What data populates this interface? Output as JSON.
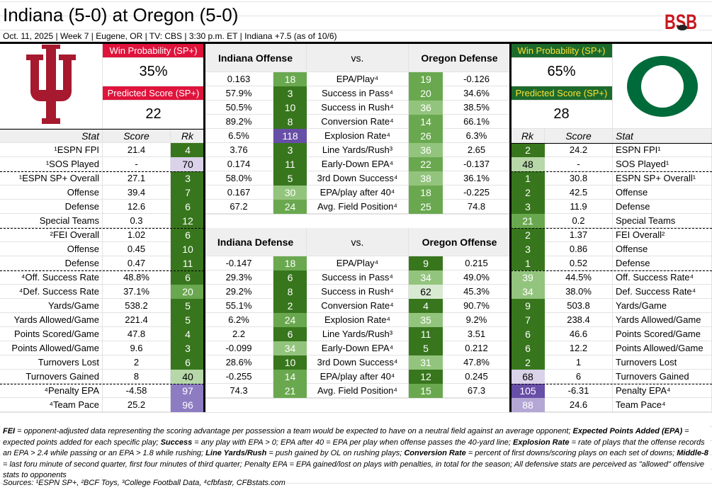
{
  "header": {
    "title": "Indiana (5-0) at Oregon (5-0)",
    "subtitle": "Oct. 11, 2025 | Week 7 | Eugene, OR | TV: CBS | 3:30 p.m. ET | Indiana +7.5 (as of 10/6)",
    "brand_logo": "BSB"
  },
  "indiana": {
    "logo": "IU",
    "win_prob_label": "Win Probability (SP+)",
    "win_prob": "35%",
    "pred_label": "Predicted Score (SP+)",
    "pred_score": "22",
    "color": "#a6192e"
  },
  "oregon": {
    "logo": "O",
    "win_prob_label": "Win Probability (SP+)",
    "win_prob": "65%",
    "pred_label": "Predicted Score (SP+)",
    "pred_score": "28",
    "color": "#006b3a"
  },
  "col_headers": {
    "stat": "Stat",
    "score": "Score",
    "rk": "Rk"
  },
  "left_stats": [
    {
      "label": "¹ESPN FPI",
      "score": "21.4",
      "rk": 4
    },
    {
      "label": "¹SOS Played",
      "score": "-",
      "rk": 70
    },
    {
      "label": "¹ESPN SP+ Overall",
      "score": "27.1",
      "rk": 3
    },
    {
      "label": "Offense",
      "score": "39.4",
      "rk": 7
    },
    {
      "label": "Defense",
      "score": "12.6",
      "rk": 6
    },
    {
      "label": "Special Teams",
      "score": "0.3",
      "rk": 12
    },
    {
      "label": "²FEI Overall",
      "score": "1.02",
      "rk": 6
    },
    {
      "label": "Offense",
      "score": "0.45",
      "rk": 10
    },
    {
      "label": "Defense",
      "score": "0.47",
      "rk": 11
    },
    {
      "label": "⁴Off. Success Rate",
      "score": "48.8%",
      "rk": 6
    },
    {
      "label": "⁴Def. Success Rate",
      "score": "37.1%",
      "rk": 20
    },
    {
      "label": "Yards/Game",
      "score": "538.2",
      "rk": 5
    },
    {
      "label": "Yards Allowed/Game",
      "score": "221.4",
      "rk": 5
    },
    {
      "label": "Points Scored/Game",
      "score": "47.8",
      "rk": 4
    },
    {
      "label": "Points Allowed/Game",
      "score": "9.6",
      "rk": 3
    },
    {
      "label": "Turnovers Lost",
      "score": "2",
      "rk": 6
    },
    {
      "label": "Turnovers Gained",
      "score": "8",
      "rk": 40
    },
    {
      "label": "⁴Penalty EPA",
      "score": "-4.58",
      "rk": 97
    },
    {
      "label": "⁴Team Pace",
      "score": "25.2",
      "rk": 96
    }
  ],
  "right_stats": [
    {
      "label": "ESPN FPI¹",
      "score": "24.2",
      "rk": 2
    },
    {
      "label": "SOS Played¹",
      "score": "-",
      "rk": 48
    },
    {
      "label": "ESPN SP+ Overall¹",
      "score": "30.8",
      "rk": 1
    },
    {
      "label": "Offense",
      "score": "42.5",
      "rk": 2
    },
    {
      "label": "Defense",
      "score": "11.9",
      "rk": 3
    },
    {
      "label": "Special Teams",
      "score": "0.2",
      "rk": 21
    },
    {
      "label": "FEI Overall²",
      "score": "1.37",
      "rk": 2
    },
    {
      "label": "Offense",
      "score": "0.86",
      "rk": 3
    },
    {
      "label": "Defense",
      "score": "0.52",
      "rk": 1
    },
    {
      "label": "Off. Success Rate⁴",
      "score": "44.5%",
      "rk": 39
    },
    {
      "label": "Def. Success Rate⁴",
      "score": "38.0%",
      "rk": 34
    },
    {
      "label": "Yards/Game",
      "score": "503.8",
      "rk": 9
    },
    {
      "label": "Yards Allowed/Game",
      "score": "238.4",
      "rk": 7
    },
    {
      "label": "Points Scored/Game",
      "score": "46.6",
      "rk": 6
    },
    {
      "label": "Points Allowed/Game",
      "score": "12.2",
      "rk": 6
    },
    {
      "label": "Turnovers Lost",
      "score": "1",
      "rk": 2
    },
    {
      "label": "Turnovers Gained",
      "score": "6",
      "rk": 68
    },
    {
      "label": "Penalty EPA⁴",
      "score": "-6.31",
      "rk": 105
    },
    {
      "label": "Team Pace⁴",
      "score": "24.6",
      "rk": 88
    }
  ],
  "matchups": [
    {
      "left_title": "Indiana Offense",
      "vs": "vs.",
      "right_title": "Oregon Defense",
      "rows": [
        {
          "lv": "0.163",
          "lr": 18,
          "label": "EPA/Play⁴",
          "rr": 19,
          "rv": "-0.126"
        },
        {
          "lv": "57.9%",
          "lr": 3,
          "label": "Success in Pass⁴",
          "rr": 20,
          "rv": "34.6%"
        },
        {
          "lv": "50.5%",
          "lr": 10,
          "label": "Success in Rush⁴",
          "rr": 36,
          "rv": "38.5%"
        },
        {
          "lv": "89.2%",
          "lr": 8,
          "label": "Conversion Rate⁴",
          "rr": 14,
          "rv": "66.1%"
        },
        {
          "lv": "6.5%",
          "lr": 118,
          "label": "Explosion Rate⁴",
          "rr": 26,
          "rv": "6.3%"
        },
        {
          "lv": "3.76",
          "lr": 3,
          "label": "Line Yards/Rush³",
          "rr": 36,
          "rv": "2.65"
        },
        {
          "lv": "0.174",
          "lr": 11,
          "label": "Early-Down EPA⁴",
          "rr": 22,
          "rv": "-0.137"
        },
        {
          "lv": "58.0%",
          "lr": 5,
          "label": "3rd Down Success⁴",
          "rr": 38,
          "rv": "36.1%"
        },
        {
          "lv": "0.167",
          "lr": 30,
          "label": "EPA/play after 40⁴",
          "rr": 18,
          "rv": "-0.225"
        },
        {
          "lv": "67.2",
          "lr": 24,
          "label": "Avg. Field Position⁴",
          "rr": 25,
          "rv": "74.8"
        }
      ]
    },
    {
      "left_title": "Indiana Defense",
      "vs": "vs.",
      "right_title": "Oregon Offense",
      "rows": [
        {
          "lv": "-0.147",
          "lr": 18,
          "label": "EPA/Play⁴",
          "rr": 9,
          "rv": "0.215"
        },
        {
          "lv": "29.3%",
          "lr": 6,
          "label": "Success in Pass⁴",
          "rr": 34,
          "rv": "49.0%"
        },
        {
          "lv": "29.2%",
          "lr": 8,
          "label": "Success in Rush⁴",
          "rr": 62,
          "rv": "45.3%"
        },
        {
          "lv": "55.1%",
          "lr": 2,
          "label": "Conversion Rate⁴",
          "rr": 4,
          "rv": "90.7%"
        },
        {
          "lv": "6.2%",
          "lr": 24,
          "label": "Explosion Rate⁴",
          "rr": 35,
          "rv": "9.2%"
        },
        {
          "lv": "2.2",
          "lr": 6,
          "label": "Line Yards/Rush³",
          "rr": 11,
          "rv": "3.51"
        },
        {
          "lv": "-0.099",
          "lr": 34,
          "label": "Early-Down EPA⁴",
          "rr": 5,
          "rv": "0.212"
        },
        {
          "lv": "28.6%",
          "lr": 10,
          "label": "3rd Down Success⁴",
          "rr": 31,
          "rv": "47.8%"
        },
        {
          "lv": "-0.255",
          "lr": 14,
          "label": "EPA/play after 40⁴",
          "rr": 12,
          "rv": "0.245"
        },
        {
          "lv": "74.3",
          "lr": 21,
          "label": "Avg. Field Position⁴",
          "rr": 15,
          "rv": "67.3"
        }
      ]
    }
  ],
  "rank_colors": {
    "top": "#38761d",
    "good": "#6aa84f",
    "fair": "#93c47d",
    "avg": "#b6d7a8",
    "mid": "#d9ead3",
    "low": "#d9d2e9",
    "poor": "#b4a7d6",
    "bad": "#8e7cc3",
    "worst": "#674ea7"
  },
  "notes": [
    {
      "t": "FEI",
      "b": true
    },
    {
      "t": " = opponent-adjusted data representing the scoring advantage per possession a team would be expected to have on a neutral field against an average opponent; "
    },
    {
      "t": "Expected Points Added (EPA)",
      "b": true
    },
    {
      "t": " = expected points added for each specific play; "
    },
    {
      "t": "Success",
      "b": true
    },
    {
      "t": " = any play with EPA > 0; EPA after 40 = EPA per play when offense passes the 40-yard line; "
    },
    {
      "t": "Explosion Rate",
      "b": true
    },
    {
      "t": " = rate of plays that the offense records an EPA > 2.4 while passing or an EPA > 1.8 while rushing; "
    },
    {
      "t": "Line Yards/Rush",
      "b": true
    },
    {
      "t": " = push gained by OL on rushing plays; "
    },
    {
      "t": "Conversion Rate",
      "b": true
    },
    {
      "t": " = percent of first downs/scoring plays on each set of downs; "
    },
    {
      "t": "Middle-8",
      "b": true
    },
    {
      "t": " = last foru minute of second quarter, first four minutes of third quarter; Penalty EPA = EPA gained/lost on plays with penalties, in total for the season; All defensive stats are perceived as \"allowed\" offensive stats to opponents"
    }
  ],
  "sources": "Sources:  ¹ESPN SP+, ²BCF Toys, ³College Football Data, ⁴cfbfastr, CFBstats.com"
}
